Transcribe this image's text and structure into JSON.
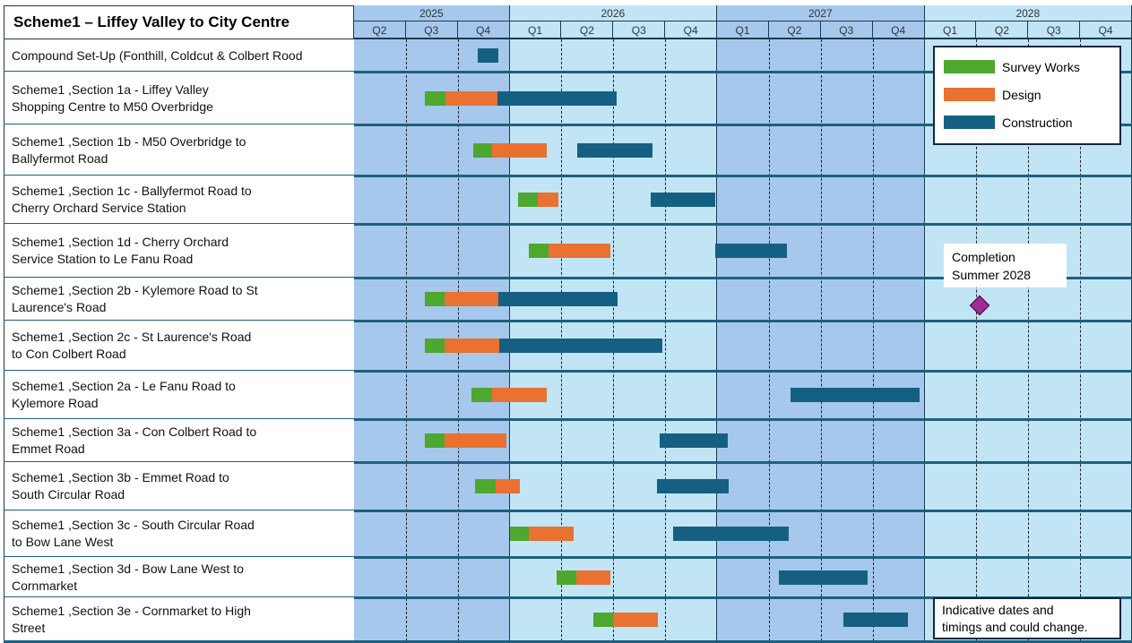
{
  "chart_data": {
    "type": "gantt",
    "title": "Scheme1 – Liffey Valley to City Centre",
    "time_unit": "quarters elapsed since start of 2025-Q2",
    "years": [
      {
        "label": "2025",
        "quarters": [
          "Q2",
          "Q3",
          "Q4"
        ]
      },
      {
        "label": "2026",
        "quarters": [
          "Q1",
          "Q2",
          "Q3",
          "Q4"
        ]
      },
      {
        "label": "2027",
        "quarters": [
          "Q1",
          "Q2",
          "Q3",
          "Q4"
        ]
      },
      {
        "label": "2028",
        "quarters": [
          "Q1",
          "Q2",
          "Q3",
          "Q4"
        ]
      }
    ],
    "colors": {
      "survey": "#4ea72e",
      "design": "#e97132",
      "construction": "#156082",
      "milestone": "#a02b93",
      "year_dark": "#a6c8ec",
      "year_light": "#c1e5f5"
    },
    "legend": [
      {
        "key": "survey",
        "label": "Survey Works"
      },
      {
        "key": "design",
        "label": "Design"
      },
      {
        "key": "construction",
        "label": "Construction"
      }
    ],
    "tasks": [
      {
        "label": "Compound Set-Up (Fonthill, Coldcut  & Colbert Rood",
        "construction": [
          2.38,
          2.78
        ]
      },
      {
        "label": "Scheme1 ,Section 1a - Liffey Valley\nShopping Centre to M50 Overbridge",
        "survey": [
          1.37,
          1.76
        ],
        "design": [
          1.76,
          2.76
        ],
        "construction": [
          2.76,
          5.06
        ]
      },
      {
        "label": "Scheme1 ,Section 1b - M50 Overbridge to\nBallyfermot Road",
        "survey": [
          2.3,
          2.66
        ],
        "design": [
          2.66,
          3.72
        ],
        "construction": [
          4.3,
          5.75
        ]
      },
      {
        "label": "Scheme1 ,Section 1c - Ballyfermot Road to\nCherry Orchard Service Station",
        "survey": [
          3.16,
          3.54
        ],
        "design": [
          3.54,
          3.94
        ],
        "construction": [
          5.72,
          6.96
        ]
      },
      {
        "label": "Scheme1 ,Section 1d - Cherry Orchard\nService Station to Le Fanu Road",
        "survey": [
          3.37,
          3.75
        ],
        "design": [
          3.75,
          4.94
        ],
        "construction": [
          6.96,
          8.35
        ]
      },
      {
        "label": "Scheme1 ,Section 2b - Kylemore Road to St\nLaurence's Road",
        "survey": [
          1.37,
          1.75
        ],
        "design": [
          1.75,
          2.78
        ],
        "construction": [
          2.78,
          5.08
        ]
      },
      {
        "label": "Scheme1 ,Section 2c - St Laurence's Road\nto Con Colbert Road",
        "survey": [
          1.37,
          1.75
        ],
        "design": [
          1.75,
          2.8
        ],
        "construction": [
          2.8,
          5.94
        ]
      },
      {
        "label": "Scheme1 ,Section 2a - Le Fanu Road to\nKylemore Road",
        "survey": [
          2.26,
          2.66
        ],
        "design": [
          2.66,
          3.72
        ],
        "construction": [
          8.42,
          10.9
        ]
      },
      {
        "label": "Scheme1 ,Section 3a - Con Colbert Road to\nEmmet Road",
        "survey": [
          1.37,
          1.75
        ],
        "design": [
          1.75,
          2.94
        ],
        "construction": [
          5.89,
          7.21
        ]
      },
      {
        "label": "Scheme1 ,Section 3b - Emmet Road to\nSouth Circular Road",
        "survey": [
          2.33,
          2.73
        ],
        "design": [
          2.73,
          3.2
        ],
        "construction": [
          5.84,
          7.22
        ]
      },
      {
        "label": "Scheme1 ,Section 3c - South Circular Road\nto Bow Lane West",
        "survey": [
          3.01,
          3.37
        ],
        "design": [
          3.37,
          4.23
        ],
        "construction": [
          6.15,
          8.38
        ]
      },
      {
        "label": "Scheme1 ,Section 3d - Bow Lane West to\nCornmarket",
        "survey": [
          3.91,
          4.29
        ],
        "design": [
          4.29,
          4.94
        ],
        "construction": [
          8.19,
          9.9
        ]
      },
      {
        "label": "Scheme1 ,Section 3e - Cornmarket to High\nStreet",
        "survey": [
          4.61,
          4.99
        ],
        "design": [
          4.99,
          5.86
        ],
        "construction": [
          9.43,
          10.68
        ]
      }
    ],
    "milestone": {
      "label": "Completion\nSummer 2028",
      "at": 12.06
    },
    "note": "Indicative dates and\ntimings and could change."
  }
}
